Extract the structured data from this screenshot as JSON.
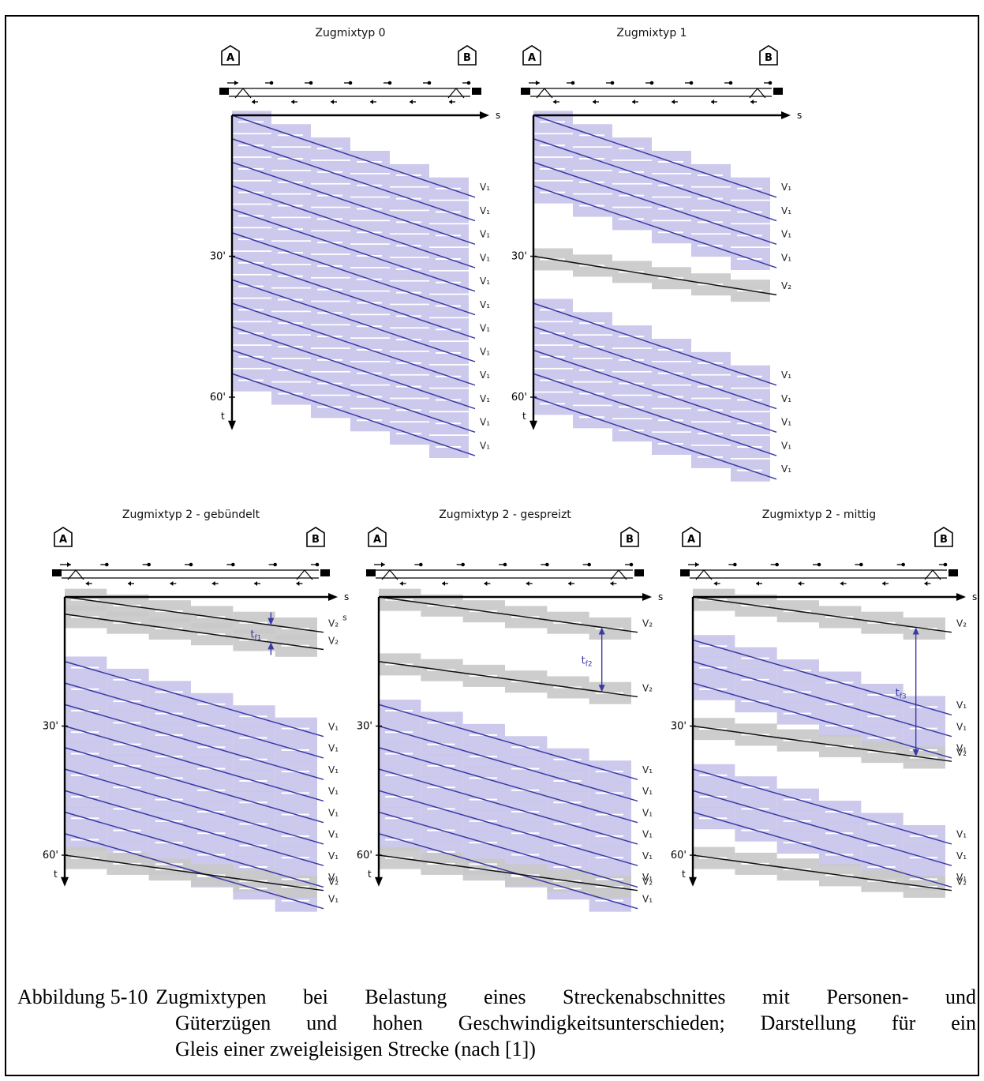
{
  "panels": [
    {
      "id": "typ0",
      "title": "Zugmixtyp 0",
      "station_a": "A",
      "station_b": "B",
      "axis_s": "s",
      "axis_t": "t",
      "tick_30": "30'",
      "tick_60": "60'",
      "trains": [
        {
          "speed": "V₁",
          "kind": "v1",
          "start_min": 0
        },
        {
          "speed": "V₁",
          "kind": "v1",
          "start_min": 5
        },
        {
          "speed": "V₁",
          "kind": "v1",
          "start_min": 10
        },
        {
          "speed": "V₁",
          "kind": "v1",
          "start_min": 15
        },
        {
          "speed": "V₁",
          "kind": "v1",
          "start_min": 20
        },
        {
          "speed": "V₁",
          "kind": "v1",
          "start_min": 25
        },
        {
          "speed": "V₁",
          "kind": "v1",
          "start_min": 30
        },
        {
          "speed": "V₁",
          "kind": "v1",
          "start_min": 35
        },
        {
          "speed": "V₁",
          "kind": "v1",
          "start_min": 40
        },
        {
          "speed": "V₁",
          "kind": "v1",
          "start_min": 45
        },
        {
          "speed": "V₁",
          "kind": "v1",
          "start_min": 50
        },
        {
          "speed": "V₁",
          "kind": "v1",
          "start_min": 55
        }
      ],
      "extra_labels": [],
      "headway": null
    },
    {
      "id": "typ1",
      "title": "Zugmixtyp 1",
      "station_a": "A",
      "station_b": "B",
      "axis_s": "s",
      "axis_t": "t",
      "tick_30": "30'",
      "tick_60": "60'",
      "trains": [
        {
          "speed": "V₁",
          "kind": "v1",
          "start_min": 0
        },
        {
          "speed": "V₁",
          "kind": "v1",
          "start_min": 5
        },
        {
          "speed": "V₁",
          "kind": "v1",
          "start_min": 10
        },
        {
          "speed": "V₁",
          "kind": "v1",
          "start_min": 15
        },
        {
          "speed": "V₂",
          "kind": "v2",
          "start_min": 30
        },
        {
          "speed": "V₁",
          "kind": "v1",
          "start_min": 40
        },
        {
          "speed": "V₁",
          "kind": "v1",
          "start_min": 45
        },
        {
          "speed": "V₁",
          "kind": "v1",
          "start_min": 50
        },
        {
          "speed": "V₁",
          "kind": "v1",
          "start_min": 55
        },
        {
          "speed": "V₁",
          "kind": "v1",
          "start_min": 60
        }
      ],
      "extra_labels": [],
      "headway": null
    },
    {
      "id": "typ2-gebuendelt",
      "title": "Zugmixtyp 2 - gebündelt",
      "station_a": "A",
      "station_b": "B",
      "axis_s": "s",
      "axis_t": "t",
      "tick_30": "30'",
      "tick_60": "60'",
      "trains": [
        {
          "speed": "V₂",
          "kind": "v2",
          "start_min": 0
        },
        {
          "speed": "V₂",
          "kind": "v2",
          "start_min": 4
        },
        {
          "speed": "V₁",
          "kind": "v1",
          "start_min": 15
        },
        {
          "speed": "V₁",
          "kind": "v1",
          "start_min": 20
        },
        {
          "speed": "V₁",
          "kind": "v1",
          "start_min": 25
        },
        {
          "speed": "V₁",
          "kind": "v1",
          "start_min": 30
        },
        {
          "speed": "V₁",
          "kind": "v1",
          "start_min": 35
        },
        {
          "speed": "V₁",
          "kind": "v1",
          "start_min": 40
        },
        {
          "speed": "V₁",
          "kind": "v1",
          "start_min": 45
        },
        {
          "speed": "V₁",
          "kind": "v1",
          "start_min": 50
        },
        {
          "speed": "V₁",
          "kind": "v1",
          "start_min": 55
        },
        {
          "speed": "V₂",
          "kind": "v2",
          "start_min": 60
        }
      ],
      "extra_labels": [
        "s"
      ],
      "headway": {
        "label": "t_f1",
        "sym": "t",
        "sub": "f1",
        "from_min": 0,
        "to_min": 4,
        "style": "inward"
      }
    },
    {
      "id": "typ2-gespreizt",
      "title": "Zugmixtyp 2 - gespreizt",
      "station_a": "A",
      "station_b": "B",
      "axis_s": "s",
      "axis_t": "t",
      "tick_30": "30'",
      "tick_60": "60'",
      "trains": [
        {
          "speed": "V₂",
          "kind": "v2",
          "start_min": 0
        },
        {
          "speed": "V₂",
          "kind": "v2",
          "start_min": 15
        },
        {
          "speed": "V₁",
          "kind": "v1",
          "start_min": 25
        },
        {
          "speed": "V₁",
          "kind": "v1",
          "start_min": 30
        },
        {
          "speed": "V₁",
          "kind": "v1",
          "start_min": 35
        },
        {
          "speed": "V₁",
          "kind": "v1",
          "start_min": 40
        },
        {
          "speed": "V₁",
          "kind": "v1",
          "start_min": 45
        },
        {
          "speed": "V₁",
          "kind": "v1",
          "start_min": 50
        },
        {
          "speed": "V₁",
          "kind": "v1",
          "start_min": 55
        },
        {
          "speed": "V₂",
          "kind": "v2",
          "start_min": 60
        }
      ],
      "extra_labels": [],
      "headway": {
        "label": "t_f2",
        "sym": "t",
        "sub": "f2",
        "from_min": 0,
        "to_min": 15,
        "style": "outward"
      }
    },
    {
      "id": "typ2-mittig",
      "title": "Zugmixtyp 2 - mittig",
      "station_a": "A",
      "station_b": "B",
      "axis_s": "s",
      "axis_t": "t",
      "tick_30": "30'",
      "tick_60": "60'",
      "trains": [
        {
          "speed": "V₂",
          "kind": "v2",
          "start_min": 0
        },
        {
          "speed": "V₁",
          "kind": "v1",
          "start_min": 10
        },
        {
          "speed": "V₁",
          "kind": "v1",
          "start_min": 15
        },
        {
          "speed": "V₁",
          "kind": "v1",
          "start_min": 20
        },
        {
          "speed": "V₂",
          "kind": "v2",
          "start_min": 30
        },
        {
          "speed": "V₁",
          "kind": "v1",
          "start_min": 40
        },
        {
          "speed": "V₁",
          "kind": "v1",
          "start_min": 45
        },
        {
          "speed": "V₁",
          "kind": "v1",
          "start_min": 50
        },
        {
          "speed": "V₂",
          "kind": "v2",
          "start_min": 60
        }
      ],
      "extra_labels": [],
      "headway": {
        "label": "t_f3",
        "sym": "t",
        "sub": "f3",
        "from_min": 0,
        "to_min": 30,
        "style": "outward"
      }
    }
  ],
  "caption": {
    "label": "Abbildung 5-10",
    "line1": "Zugmixtypen bei Belastung eines Streckenabschnittes mit Personen- und",
    "line2": "Güterzügen und hohen Geschwindigkeitsunterschieden; Darstellung für ein",
    "line3": "Gleis einer zweigleisigen Strecke (nach [1])"
  },
  "colors": {
    "v1_line": "#3a3aa6",
    "v1_band": "#c8c4ec",
    "v2_line": "#111111",
    "v2_band": "#c9c9c9",
    "text": "#111111"
  }
}
